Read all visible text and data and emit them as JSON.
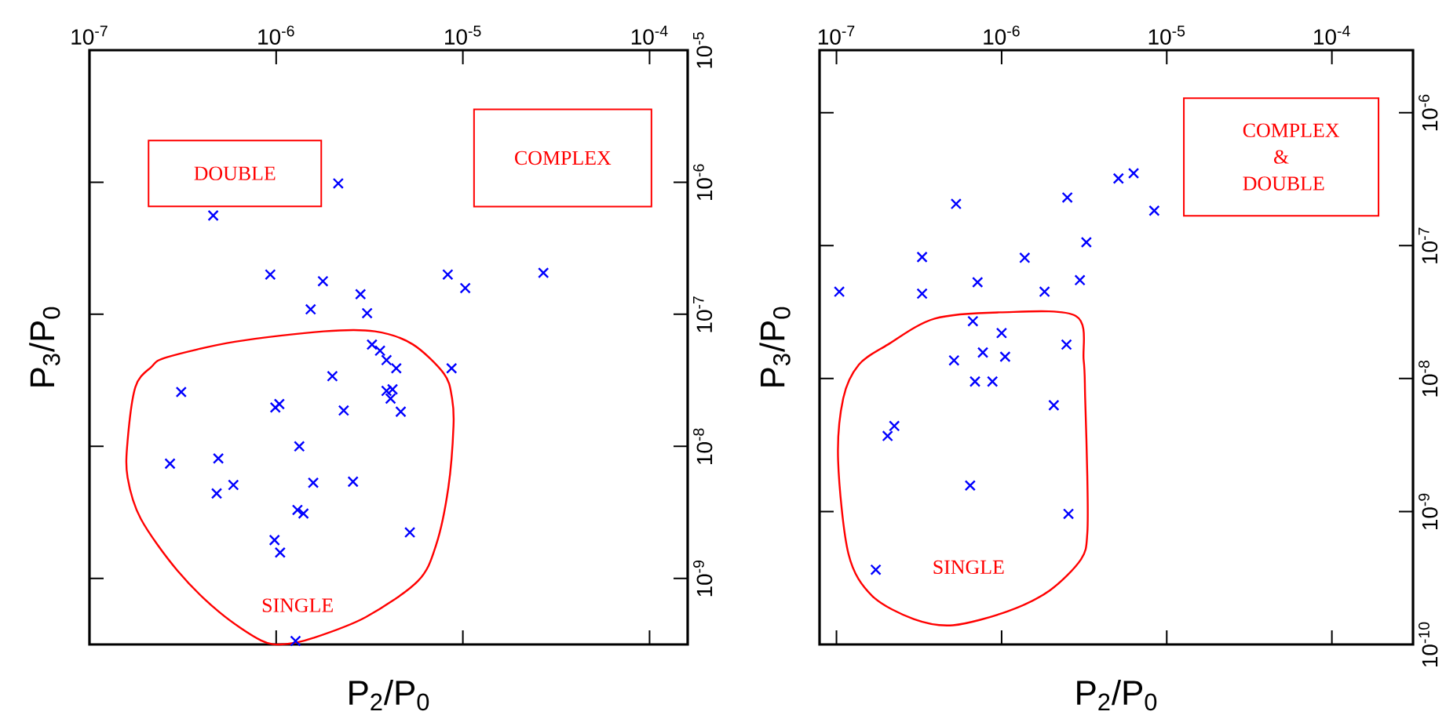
{
  "chart_data": [
    {
      "type": "scatter",
      "xlabel": "P$_{2}$/P$_{0}$",
      "ylabel": "P$_{3}$/P$_{0}$",
      "log": "xy",
      "marker": "cross",
      "xlim": [
        1e-07,
        0.00016
      ],
      "ylim": [
        3.16e-10,
        1e-05
      ],
      "xticks": [
        {
          "value": 1e-07,
          "label": "10$^{-7}$"
        },
        {
          "value": 1e-06,
          "label": "10$^{-6}$"
        },
        {
          "value": 1e-05,
          "label": "10$^{-5}$"
        },
        {
          "value": 0.0001,
          "label": "10$^{-4}$"
        }
      ],
      "yticks": [
        {
          "value": 1e-09,
          "label": "10$^{-9}$"
        },
        {
          "value": 1e-08,
          "label": "10$^{-8}$"
        },
        {
          "value": 1e-07,
          "label": "10$^{-7}$"
        },
        {
          "value": 1e-06,
          "label": "10$^{-6}$"
        },
        {
          "value": 1e-05,
          "label": "10$^{-5}$"
        }
      ],
      "annotations": [
        "DOUBLE",
        "COMPLEX",
        "SINGLE"
      ],
      "series": [
        {
          "color": "#0000ff",
          "x": [
            2.15e-06,
            4.6e-07,
            9.3e-07,
            1.78e-06,
            1.53e-06,
            2.83e-06,
            3.07e-06,
            8.3e-06,
            1.03e-05,
            2.7e-05,
            3.26e-06,
            3.6e-06,
            3.9e-06,
            4.4e-06,
            8.7e-06,
            2e-06,
            3.1e-07,
            9.9e-07,
            1.04e-06,
            2.3e-06,
            3.9e-06,
            4.2e-06,
            4.1e-06,
            4.65e-06,
            1.33e-06,
            2.7e-07,
            4.9e-07,
            4.8e-07,
            5.9e-07,
            1.58e-06,
            2.58e-06,
            1.3e-06,
            1.4e-06,
            5.2e-06,
            9.8e-07,
            1.05e-06,
            1.27e-06
          ],
          "values": [
            9.8e-07,
            5.6e-07,
            2e-07,
            1.78e-07,
            1.09e-07,
            1.42e-07,
            1.02e-07,
            2e-07,
            1.58e-07,
            2.06e-07,
            5.9e-08,
            5.3e-08,
            4.5e-08,
            3.9e-08,
            3.9e-08,
            3.4e-08,
            2.58e-08,
            1.97e-08,
            2.09e-08,
            1.87e-08,
            2.63e-08,
            2.7e-08,
            2.3e-08,
            1.83e-08,
            1e-08,
            7.4e-09,
            8.1e-09,
            4.4e-09,
            5.1e-09,
            5.3e-09,
            5.4e-09,
            3.3e-09,
            3.1e-09,
            2.23e-09,
            1.95e-09,
            1.57e-09,
            3.36e-10
          ]
        }
      ]
    },
    {
      "type": "scatter",
      "xlabel": "P$_{2}$/P$_{0}$",
      "ylabel": "P$_{3}$/P$_{0}$",
      "log": "xy",
      "marker": "cross",
      "xlim": [
        7.9e-08,
        0.00031
      ],
      "ylim": [
        1e-10,
        2.95e-06
      ],
      "xticks": [
        {
          "value": 1e-07,
          "label": "10$^{-7}$"
        },
        {
          "value": 1e-06,
          "label": "10$^{-6}$"
        },
        {
          "value": 1e-05,
          "label": "10$^{-5}$"
        },
        {
          "value": 0.0001,
          "label": "10$^{-4}$"
        }
      ],
      "yticks": [
        {
          "value": 1e-10,
          "label": "10$^{-10}$"
        },
        {
          "value": 1e-09,
          "label": "10$^{-9}$"
        },
        {
          "value": 1e-08,
          "label": "10$^{-8}$"
        },
        {
          "value": 1e-07,
          "label": "10$^{-7}$"
        },
        {
          "value": 1e-06,
          "label": "10$^{-6}$"
        }
      ],
      "annotations": [
        "COMPLEX & DOUBLE",
        "SINGLE"
      ],
      "series": [
        {
          "color": "#0000ff",
          "x": [
            1.04e-07,
            3.3e-07,
            3.3e-07,
            5.3e-07,
            7.15e-07,
            1.38e-06,
            1.82e-06,
            2.5e-06,
            2.98e-06,
            3.26e-06,
            5.1e-06,
            6.3e-06,
            8.4e-06,
            6.7e-07,
            1e-06,
            2.47e-06,
            5.15e-07,
            7.7e-07,
            1.05e-06,
            6.9e-07,
            8.8e-07,
            2.07e-06,
            2.04e-07,
            2.24e-07,
            6.45e-07,
            2.54e-06,
            1.73e-07
          ],
          "values": [
            4.5e-08,
            8.2e-08,
            4.35e-08,
            2.06e-07,
            5.3e-08,
            8.1e-08,
            4.5e-08,
            2.3e-07,
            5.5e-08,
            1.06e-07,
            3.2e-07,
            3.5e-07,
            1.83e-07,
            2.7e-08,
            2.2e-08,
            1.8e-08,
            1.37e-08,
            1.57e-08,
            1.46e-08,
            9.5e-09,
            9.5e-09,
            6.3e-09,
            3.7e-09,
            4.4e-09,
            1.57e-09,
            9.6e-10,
            3.65e-10
          ]
        }
      ]
    }
  ]
}
